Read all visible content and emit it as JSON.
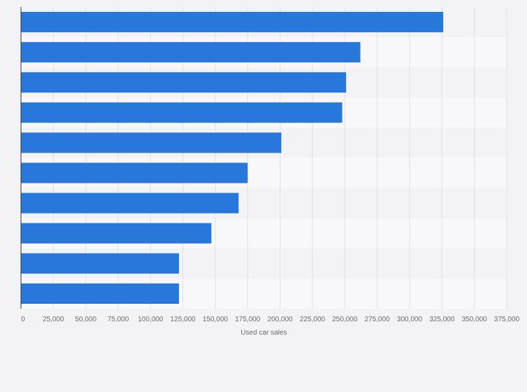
{
  "chart_data": {
    "type": "bar",
    "orientation": "horizontal",
    "title": "",
    "xlabel": "Used car sales",
    "ylabel": "",
    "categories": [
      "",
      "",
      "",
      "",
      "",
      "",
      "",
      "",
      "",
      ""
    ],
    "values": [
      326000,
      262000,
      251000,
      248000,
      201000,
      175000,
      168000,
      147000,
      122000,
      122000
    ],
    "xlim": [
      0,
      375000
    ],
    "ticks": [
      "0",
      "25,000",
      "50,000",
      "75,000",
      "100,000",
      "125,000",
      "150,000",
      "175,000",
      "200,000",
      "225,000",
      "250,000",
      "275,000",
      "300,000",
      "325,000",
      "350,000",
      "375,000"
    ],
    "grid": true,
    "bar_color": "#2878dc",
    "band_colors": [
      "#f3f3f5",
      "#f8f8fa"
    ],
    "gridline_color": "#e1e1e4",
    "axis_color": "#333333"
  }
}
